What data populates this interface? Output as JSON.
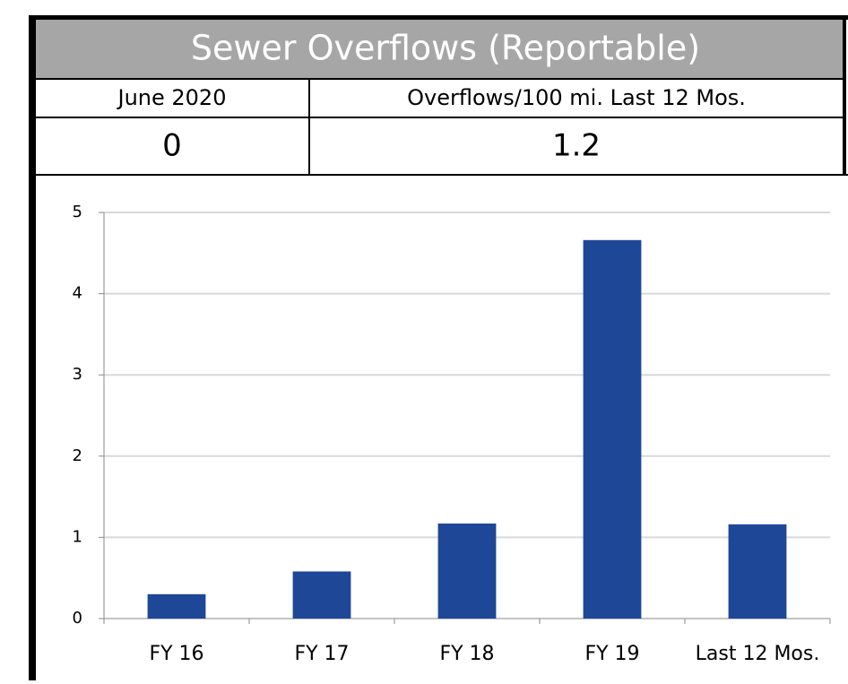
{
  "header": {
    "title": "Sewer Overflows (Reportable)",
    "columns": [
      "June 2020",
      "Overflows/100 mi. Last 12 Mos."
    ],
    "values": [
      0,
      1.2
    ]
  },
  "chart_data": {
    "type": "bar",
    "categories": [
      "FY 16",
      "FY 17",
      "FY 18",
      "FY 19",
      "Last 12 Mos."
    ],
    "values": [
      0.3,
      0.58,
      1.17,
      4.66,
      1.16
    ],
    "color": "#1f4797",
    "ylim": [
      0,
      5
    ],
    "yticks": [
      0,
      1,
      2,
      3,
      4,
      5
    ],
    "grid": true
  }
}
